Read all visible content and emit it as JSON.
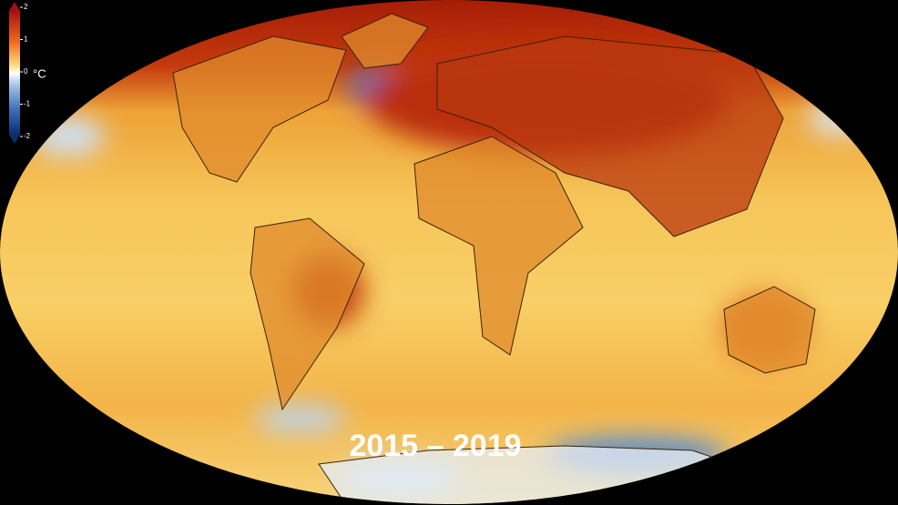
{
  "legend": {
    "unit": "°C",
    "ticks": [
      2,
      1,
      0,
      -1,
      -2
    ]
  },
  "period": "2015 – 2019"
}
